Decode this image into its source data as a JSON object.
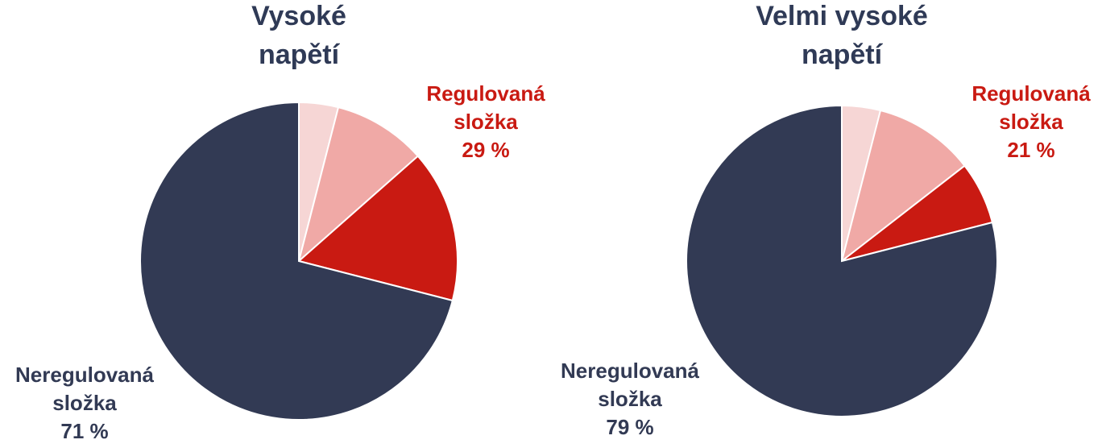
{
  "chart_data": [
    {
      "type": "pie",
      "title": [
        "Vysoké",
        "napětí"
      ],
      "values": [
        4,
        9.5,
        15.5,
        71
      ],
      "colors": [
        "#f6d6d5",
        "#f0a9a6",
        "#c91a12",
        "#323a54"
      ],
      "groups": [
        {
          "name": [
            "Regulovaná",
            "složka"
          ],
          "value": 29,
          "value_label": "29 %",
          "color": "#c91a12"
        },
        {
          "name": [
            "Neregulovaná",
            "složka"
          ],
          "value": 71,
          "value_label": "71 %",
          "color": "#323a54"
        }
      ]
    },
    {
      "type": "pie",
      "title": [
        "Velmi vysoké",
        "napětí"
      ],
      "values": [
        4,
        10.5,
        6.5,
        79
      ],
      "colors": [
        "#f6d6d5",
        "#f0a9a6",
        "#c91a12",
        "#323a54"
      ],
      "groups": [
        {
          "name": [
            "Regulovaná",
            "složka"
          ],
          "value": 21,
          "value_label": "21 %",
          "color": "#c91a12"
        },
        {
          "name": [
            "Neregulovaná",
            "složka"
          ],
          "value": 79,
          "value_label": "79 %",
          "color": "#323a54"
        }
      ]
    }
  ]
}
